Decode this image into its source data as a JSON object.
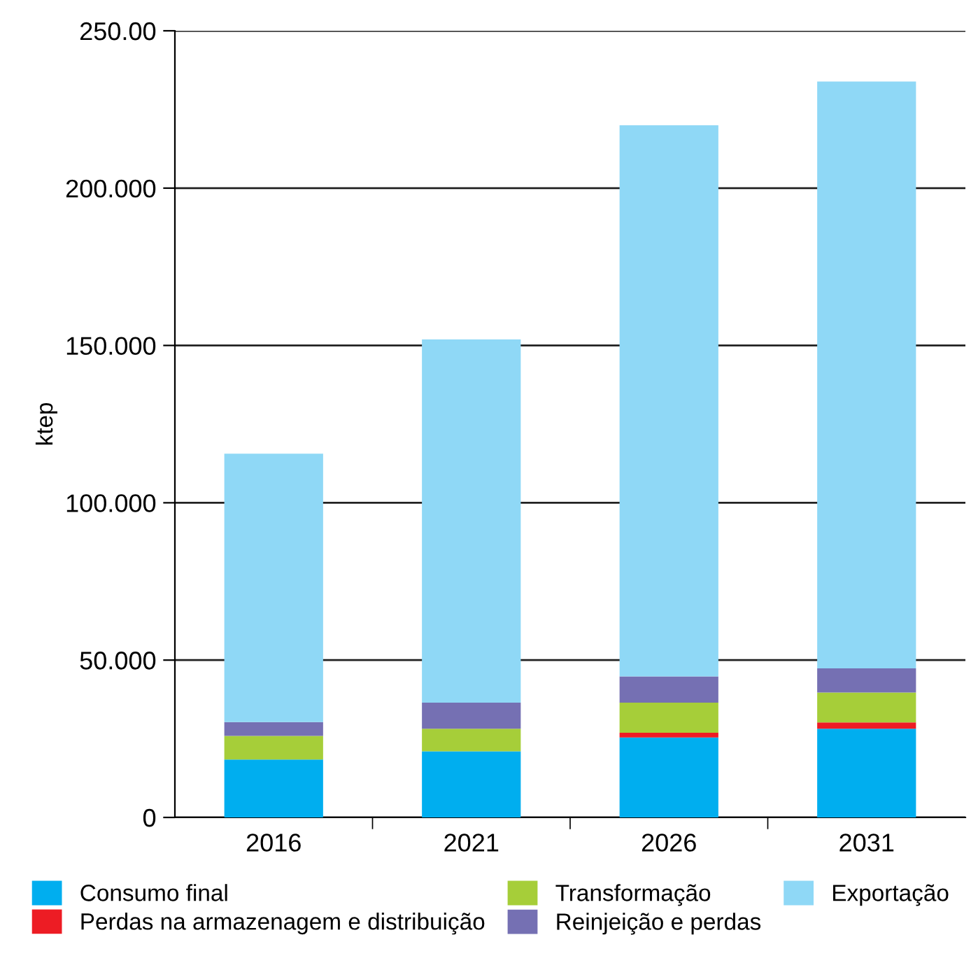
{
  "chart_data": {
    "type": "bar",
    "stacked": true,
    "ylabel": "ktep",
    "categories": [
      "2016",
      "2021",
      "2026",
      "2031"
    ],
    "series": [
      {
        "name": "Consumo final",
        "color": "#00aeef",
        "values": [
          18.4,
          21.0,
          25.4,
          28.2
        ]
      },
      {
        "name": "Perdas na armazenagem e distribuição",
        "color": "#ed1c24",
        "values": [
          0,
          0,
          1.5,
          2.0
        ]
      },
      {
        "name": "Transformação",
        "color": "#a6ce39",
        "values": [
          7.5,
          7.2,
          9.6,
          9.5
        ]
      },
      {
        "name": "Reinjeição e perdas",
        "color": "#7570b3",
        "values": [
          4.4,
          8.3,
          8.3,
          7.7
        ]
      },
      {
        "name": "Exportação",
        "color": "#8fd8f6",
        "values": [
          85.3,
          115.4,
          175.2,
          186.5
        ]
      }
    ],
    "ylim": [
      0,
      250
    ],
    "yticks": [
      {
        "value": 0,
        "label": "0"
      },
      {
        "value": 50,
        "label": "50.000"
      },
      {
        "value": 100,
        "label": "100.000"
      },
      {
        "value": 150,
        "label": "150.000"
      },
      {
        "value": 200,
        "label": "200.000"
      },
      {
        "value": 250,
        "label": "250.00"
      }
    ],
    "grid": "y",
    "legend": "bottom"
  }
}
